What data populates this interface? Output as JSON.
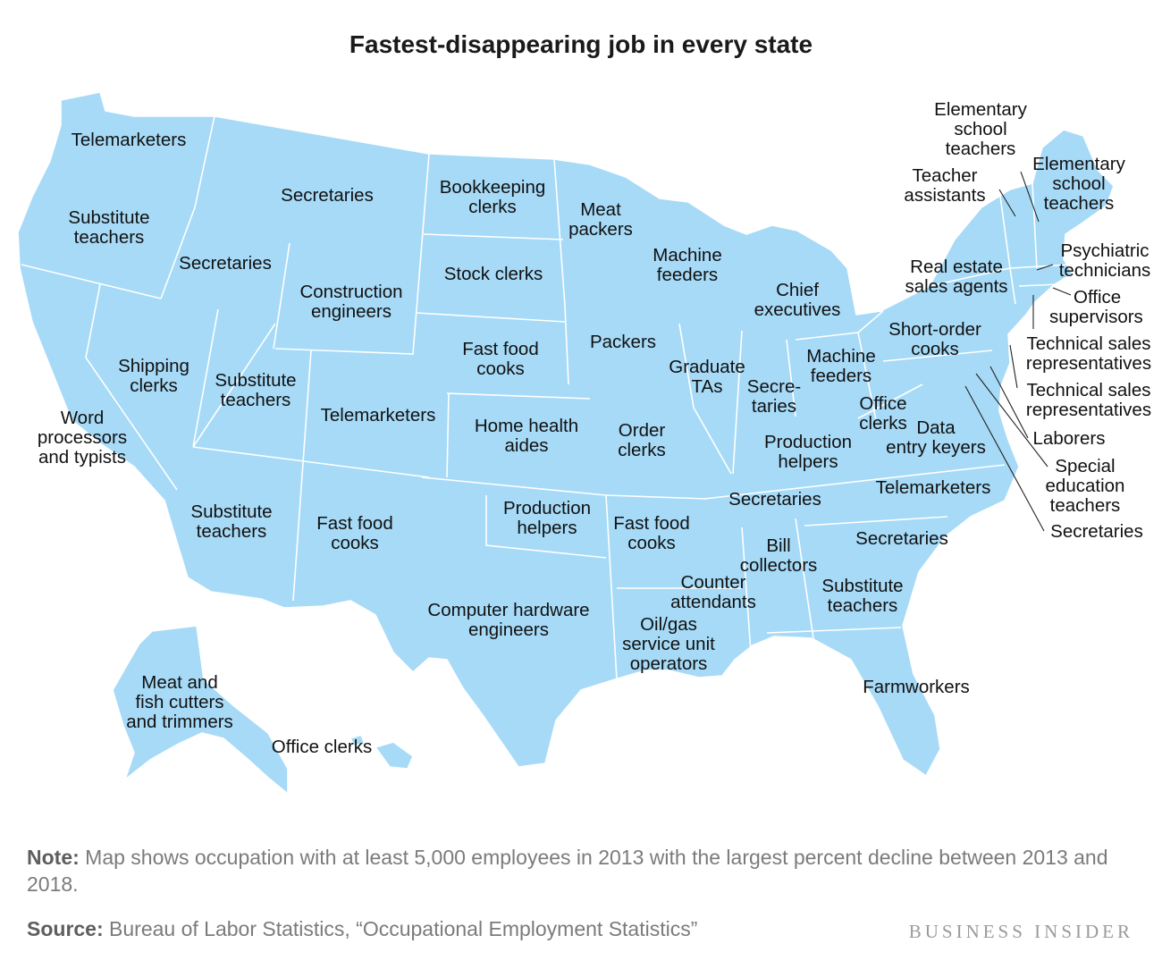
{
  "title": "Fastest-disappearing job in every state",
  "colors": {
    "land": "#a6daf7",
    "border": "#ffffff",
    "text": "#111111"
  },
  "labels": {
    "wa": [
      "Telemarketers"
    ],
    "or": [
      "Substitute",
      "teachers"
    ],
    "ca": [
      "Word",
      "processors",
      "and typists"
    ],
    "nv": [
      "Shipping",
      "clerks"
    ],
    "id": [
      "Secretaries"
    ],
    "mt": [
      "Secretaries"
    ],
    "wy": [
      "Construction",
      "engineers"
    ],
    "ut": [
      "Substitute",
      "teachers"
    ],
    "az": [
      "Substitute",
      "teachers"
    ],
    "co": [
      "Telemarketers"
    ],
    "nm": [
      "Fast food",
      "cooks"
    ],
    "nd": [
      "Bookkeeping",
      "clerks"
    ],
    "sd": [
      "Stock clerks"
    ],
    "ne": [
      "Fast food",
      "cooks"
    ],
    "ks": [
      "Home health",
      "aides"
    ],
    "ok": [
      "Production",
      "helpers"
    ],
    "tx": [
      "Computer hardware",
      "engineers"
    ],
    "mn": [
      "Meat",
      "packers"
    ],
    "ia": [
      "Packers"
    ],
    "mo": [
      "Order",
      "clerks"
    ],
    "ar": [
      "Fast food",
      "cooks"
    ],
    "la": [
      "Oil/gas",
      "service unit",
      "operators"
    ],
    "wi": [
      "Machine",
      "feeders"
    ],
    "il": [
      "Graduate",
      "TAs"
    ],
    "ms": [
      "Counter",
      "attendants"
    ],
    "mi": [
      "Chief",
      "executives"
    ],
    "in": [
      "Secre-",
      "taries"
    ],
    "oh": [
      "Machine",
      "feeders"
    ],
    "ky": [
      "Production",
      "helpers"
    ],
    "tn": [
      "Secretaries"
    ],
    "al": [
      "Bill",
      "collectors"
    ],
    "ga": [
      "Substitute",
      "teachers"
    ],
    "fl": [
      "Farmworkers"
    ],
    "sc": [
      "Secretaries"
    ],
    "nc": [
      "Telemarketers"
    ],
    "va": [
      "Data",
      "entry keyers"
    ],
    "wv": [
      "Office",
      "clerks"
    ],
    "pa": [
      "Short-order",
      "cooks"
    ],
    "ny": [
      "Real estate",
      "sales agents"
    ],
    "vt": [
      "Teacher",
      "assistants"
    ],
    "nh": [
      "Elementary",
      "school",
      "teachers"
    ],
    "me": [
      "Elementary",
      "school",
      "teachers"
    ],
    "ma": [
      "Psychiatric",
      "technicians"
    ],
    "ri": [
      "Office",
      "supervisors"
    ],
    "ct": [
      "Technical sales",
      "representatives"
    ],
    "nj": [
      "Technical sales",
      "representatives"
    ],
    "de": [
      "Laborers"
    ],
    "md": [
      "Special",
      "education",
      "teachers"
    ],
    "dc": [
      "Secretaries"
    ],
    "ak": [
      "Meat and",
      "fish cutters",
      "and trimmers"
    ],
    "hi": [
      "Office clerks"
    ]
  },
  "note_label": "Note:",
  "note_text": "Map shows occupation with at least 5,000 employees in 2013 with the largest percent decline between 2013 and 2018.",
  "source_label": "Source:",
  "source_text": "Bureau of Labor Statistics, “Occupational Employment Statistics”",
  "brand": "BUSINESS INSIDER"
}
